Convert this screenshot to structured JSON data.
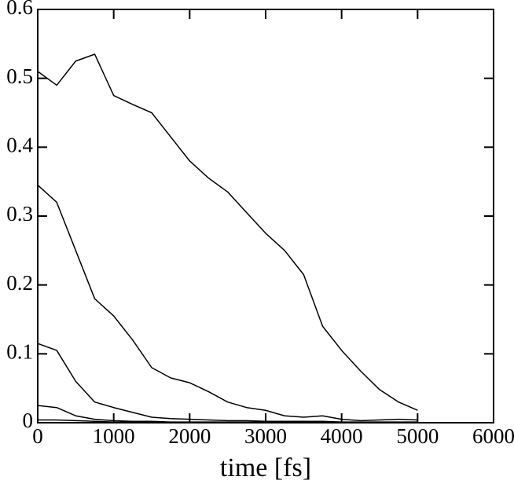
{
  "chart_data": {
    "type": "line",
    "xlabel": "time [fs]",
    "x": [
      0,
      250,
      500,
      750,
      1000,
      1250,
      1500,
      1750,
      2000,
      2250,
      2500,
      2750,
      3000,
      3250,
      3500,
      3750,
      4000,
      4250,
      4500,
      4750,
      5000
    ],
    "series": [
      {
        "color": "#000000",
        "values": [
          0.51,
          0.49,
          0.525,
          0.535,
          0.475,
          0.462,
          0.45,
          0.415,
          0.38,
          0.355,
          0.335,
          0.305,
          0.275,
          0.25,
          0.215,
          0.14,
          0.105,
          0.075,
          0.048,
          0.03,
          0.018
        ]
      },
      {
        "color": "#000000",
        "values": [
          0.345,
          0.32,
          0.25,
          0.18,
          0.155,
          0.12,
          0.08,
          0.065,
          0.058,
          0.045,
          0.03,
          0.022,
          0.018,
          0.01,
          0.008,
          0.01,
          0.005,
          0.003,
          0.004,
          0.005,
          0.004
        ]
      },
      {
        "color": "#000000",
        "values": [
          0.115,
          0.105,
          0.06,
          0.03,
          0.022,
          0.015,
          0.008,
          0.006,
          0.005,
          0.004,
          0.003,
          0.003,
          0.002,
          0.002,
          0.002,
          0.002,
          0.001,
          0.001,
          0.001,
          0.001,
          0.001
        ]
      },
      {
        "color": "#000000",
        "values": [
          0.025,
          0.022,
          0.01,
          0.005,
          0.003,
          0.002,
          0.002,
          0.001,
          0.001,
          0.001,
          0.001,
          0.001,
          0.001,
          0.001,
          0.001,
          0.001,
          0.0,
          0.0,
          0.0,
          0.0,
          0.0
        ]
      },
      {
        "color": "#000000",
        "values": [
          0.004,
          0.004,
          0.003,
          0.002,
          0.001,
          0.001,
          0.001,
          0.0,
          0.0,
          0.0,
          0.0,
          0.0,
          0.0,
          0.0,
          0.0,
          0.0,
          0.0,
          0.0,
          0.0,
          0.0,
          0.0
        ]
      }
    ],
    "xlim": [
      0,
      6000
    ],
    "xticks": [
      0,
      1000,
      2000,
      3000,
      4000,
      5000,
      6000
    ],
    "ylim": [
      0,
      0.6
    ],
    "yticks": [
      0,
      0.1,
      0.2,
      0.3,
      0.4,
      0.5,
      0.6
    ]
  }
}
